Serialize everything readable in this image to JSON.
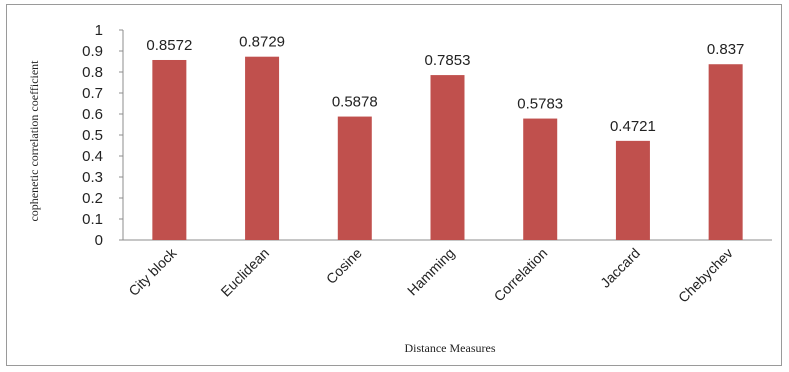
{
  "chart_data": {
    "type": "bar",
    "title": "",
    "xlabel": "Distance Measures",
    "ylabel": "cophenetic correlation coefficient",
    "categories": [
      "City block",
      "Euclidean",
      "Cosine",
      "Hamming",
      "Correlation",
      "Jaccard",
      "Chebychev"
    ],
    "values": [
      0.8572,
      0.8729,
      0.5878,
      0.7853,
      0.5783,
      0.4721,
      0.837
    ],
    "value_labels": [
      "0.8572",
      "0.8729",
      "0.5878",
      "0.7853",
      "0.5783",
      "0.4721",
      "0.837"
    ],
    "yticks": [
      "0",
      "0.1",
      "0.2",
      "0.3",
      "0.4",
      "0.5",
      "0.6",
      "0.7",
      "0.8",
      "0.9",
      "1"
    ],
    "ylim": [
      0,
      1
    ],
    "grid": false,
    "legend": "none",
    "bar_color": "#c0504d"
  }
}
